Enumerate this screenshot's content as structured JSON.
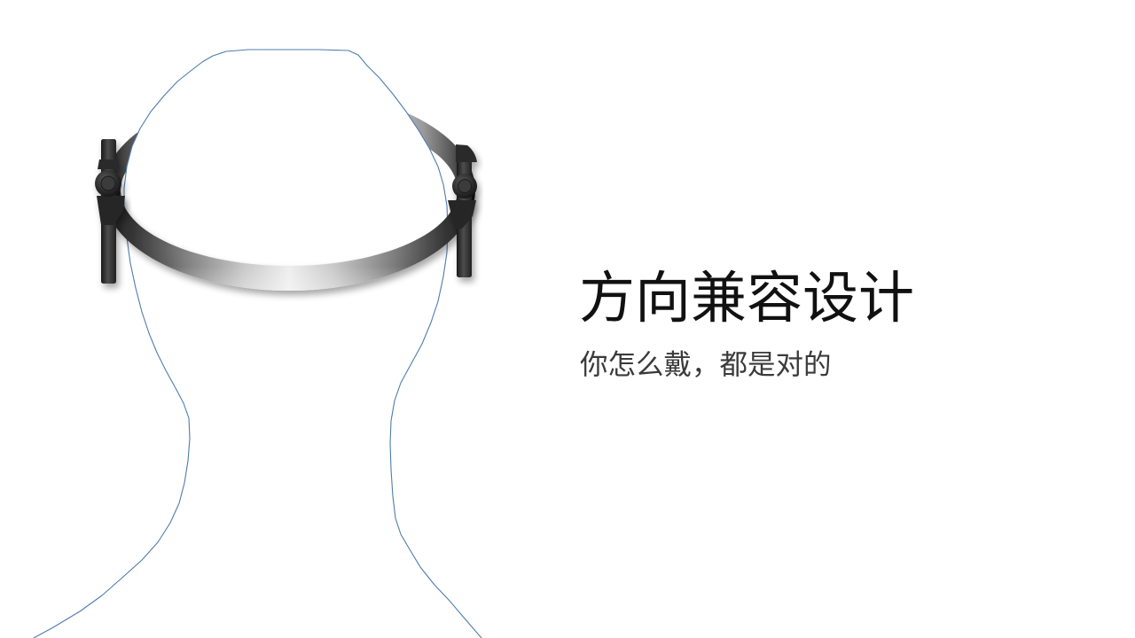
{
  "slide": {
    "title": "方向兼容设计",
    "subtitle": "你怎么戴，都是对的"
  },
  "colors": {
    "background": "#ffffff",
    "title": "#111111",
    "subtitle": "#3a3a3a",
    "head_outline": "#4f7cad",
    "device_dark": "#262626"
  }
}
